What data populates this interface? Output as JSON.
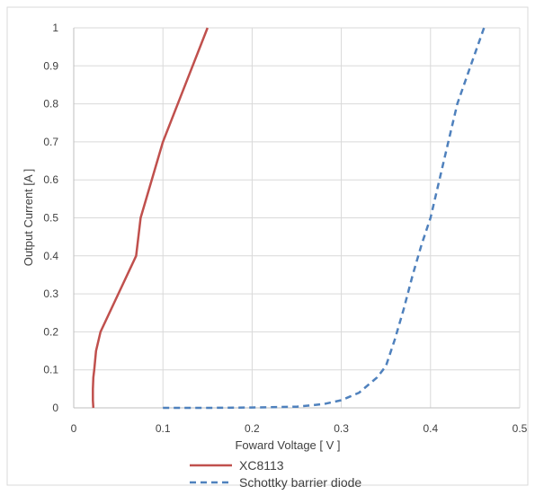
{
  "chart_data": {
    "type": "line",
    "title": "",
    "xlabel": "Foward Voltage  [ V ]",
    "ylabel": "Output Current  [A ]",
    "xlim": [
      0,
      0.5
    ],
    "ylim": [
      0,
      1
    ],
    "x_ticks": [
      "0",
      "0.1",
      "0.2",
      "0.3",
      "0.4",
      "0.5"
    ],
    "y_ticks": [
      "0",
      "0.1",
      "0.2",
      "0.3",
      "0.4",
      "0.5",
      "0.6",
      "0.7",
      "0.8",
      "0.9",
      "1"
    ],
    "grid": true,
    "legend_position": "bottom",
    "series": [
      {
        "name": "XC8113",
        "color": "#c0504d",
        "style": "solid",
        "points": [
          [
            0.022,
            0.0
          ],
          [
            0.0215,
            0.02
          ],
          [
            0.0215,
            0.05
          ],
          [
            0.022,
            0.08
          ],
          [
            0.023,
            0.1
          ],
          [
            0.025,
            0.15
          ],
          [
            0.03,
            0.2
          ],
          [
            0.05,
            0.3
          ],
          [
            0.07,
            0.4
          ],
          [
            0.075,
            0.5
          ],
          [
            0.1,
            0.7
          ],
          [
            0.125,
            0.85
          ],
          [
            0.15,
            1.0
          ]
        ]
      },
      {
        "name": "Schottky barrier diode",
        "color": "#4f81bd",
        "style": "dashed",
        "points": [
          [
            0.1,
            0.0
          ],
          [
            0.15,
            0.0
          ],
          [
            0.2,
            0.001
          ],
          [
            0.25,
            0.003
          ],
          [
            0.28,
            0.01
          ],
          [
            0.3,
            0.02
          ],
          [
            0.32,
            0.04
          ],
          [
            0.34,
            0.08
          ],
          [
            0.35,
            0.11
          ],
          [
            0.36,
            0.18
          ],
          [
            0.37,
            0.26
          ],
          [
            0.38,
            0.35
          ],
          [
            0.39,
            0.43
          ],
          [
            0.4,
            0.5
          ],
          [
            0.41,
            0.6
          ],
          [
            0.42,
            0.7
          ],
          [
            0.43,
            0.8
          ],
          [
            0.445,
            0.9
          ],
          [
            0.46,
            1.0
          ]
        ]
      }
    ]
  }
}
